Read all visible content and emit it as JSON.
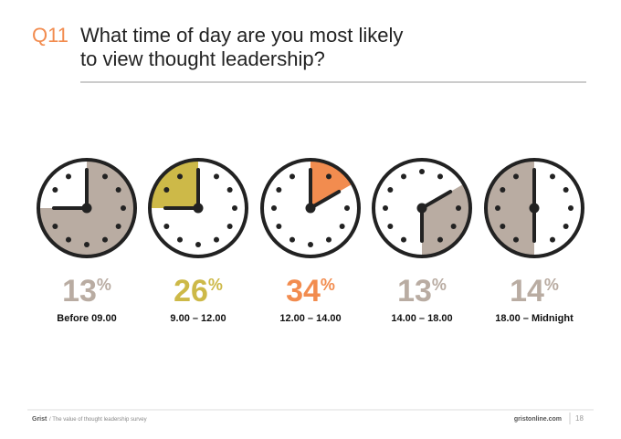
{
  "header": {
    "label": "Q11",
    "title": [
      "What time of day are you most likely",
      "to view thought leadership?"
    ]
  },
  "items": [
    {
      "value": 13,
      "unit": "%",
      "label": "Before 09.00",
      "color": "#b9aca2"
    },
    {
      "value": 26,
      "unit": "%",
      "label": "9.00 – 12.00",
      "color": "#cdb948"
    },
    {
      "value": 34,
      "unit": "%",
      "label": "12.00 – 14.00",
      "color": "#f28c4f"
    },
    {
      "value": 13,
      "unit": "%",
      "label": "14.00 – 18.00",
      "color": "#b9aca2"
    },
    {
      "value": 14,
      "unit": "%",
      "label": "18.00 – Midnight",
      "color": "#b9aca2"
    }
  ],
  "footer": {
    "brand": "Grist",
    "subtitle": "/ The value of thought leadership survey",
    "site": "gristonline.com",
    "page": "18"
  }
}
